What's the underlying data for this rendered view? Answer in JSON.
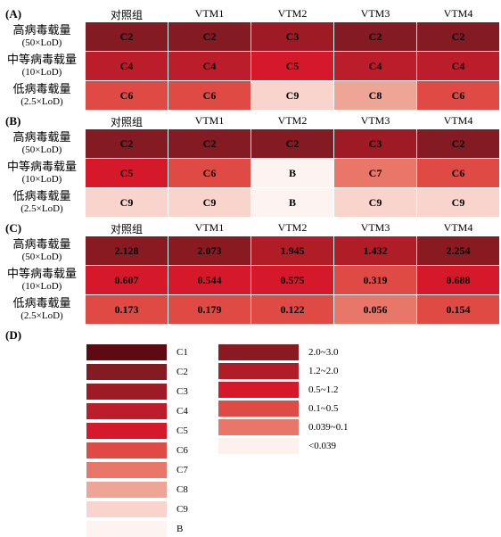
{
  "panels": [
    {
      "label": "(A)",
      "headers": [
        "对照组",
        "VTM1",
        "VTM2",
        "VTM3",
        "VTM4"
      ],
      "rows": [
        {
          "label": "高病毒载量",
          "sublabel": "(50×LoD)",
          "cells": [
            "C2",
            "C2",
            "C3",
            "C2",
            "C2"
          ]
        },
        {
          "label": "中等病毒载量",
          "sublabel": "(10×LoD)",
          "cells": [
            "C4",
            "C4",
            "C5",
            "C4",
            "C4"
          ]
        },
        {
          "label": "低病毒载量",
          "sublabel": "(2.5×LoD)",
          "cells": [
            "C6",
            "C6",
            "C9",
            "C8",
            "C6"
          ]
        }
      ]
    },
    {
      "label": "(B)",
      "headers": [
        "对照组",
        "VTM1",
        "VTM2",
        "VTM3",
        "VTM4"
      ],
      "rows": [
        {
          "label": "高病毒载量",
          "sublabel": "(50×LoD)",
          "cells": [
            "C2",
            "C2",
            "C2",
            "C3",
            "C2"
          ]
        },
        {
          "label": "中等病毒载量",
          "sublabel": "(10×LoD)",
          "cells": [
            "C5",
            "C6",
            "B",
            "C7",
            "C6"
          ]
        },
        {
          "label": "低病毒载量",
          "sublabel": "(2.5×LoD)",
          "cells": [
            "C9",
            "C9",
            "B",
            "C9",
            "C9"
          ]
        }
      ]
    },
    {
      "label": "(C)",
      "headers": [
        "对照组",
        "VTM1",
        "VTM2",
        "VTM3",
        "VTM4"
      ],
      "rows": [
        {
          "label": "高病毒载量",
          "sublabel": "(50×LoD)",
          "cells": [
            "2.128",
            "2.073",
            "1.945",
            "1.432",
            "2.254"
          ]
        },
        {
          "label": "中等病毒载量",
          "sublabel": "(10×LoD)",
          "cells": [
            "0.607",
            "0.544",
            "0.575",
            "0.319",
            "0.688"
          ]
        },
        {
          "label": "低病毒载量",
          "sublabel": "(2.5×LoD)",
          "cells": [
            "0.173",
            "0.179",
            "0.122",
            "0.056",
            "0.154"
          ]
        }
      ]
    }
  ],
  "legend": {
    "label": "(D)",
    "categories": [
      {
        "name": "C1",
        "color": "#5e0a12"
      },
      {
        "name": "C2",
        "color": "#841a22"
      },
      {
        "name": "C3",
        "color": "#9e1a24"
      },
      {
        "name": "C4",
        "color": "#bb1e2a"
      },
      {
        "name": "C5",
        "color": "#d6182b"
      },
      {
        "name": "C6",
        "color": "#df4a44"
      },
      {
        "name": "C7",
        "color": "#e8776a"
      },
      {
        "name": "C8",
        "color": "#efa596"
      },
      {
        "name": "C9",
        "color": "#f8d4cc"
      },
      {
        "name": "B",
        "color": "#fdf4f1"
      }
    ],
    "ranges": [
      {
        "name": "2.0~3.0",
        "color": "#8a1a22"
      },
      {
        "name": "1.2~2.0",
        "color": "#b01d27"
      },
      {
        "name": "0.5~1.2",
        "color": "#d6182b"
      },
      {
        "name": "0.1~0.5",
        "color": "#df4a44"
      },
      {
        "name": "0.039~0.1",
        "color": "#e8776a"
      },
      {
        "name": "<0.039",
        "color": "#fdf1ee"
      }
    ]
  },
  "chart_data": {
    "type": "heatmap",
    "columns": [
      "对照组",
      "VTM1",
      "VTM2",
      "VTM3",
      "VTM4"
    ],
    "rows": [
      "高病毒载量 (50×LoD)",
      "中等病毒载量 (10×LoD)",
      "低病毒载量 (2.5×LoD)"
    ],
    "panel_A": [
      [
        "C2",
        "C2",
        "C3",
        "C2",
        "C2"
      ],
      [
        "C4",
        "C4",
        "C5",
        "C4",
        "C4"
      ],
      [
        "C6",
        "C6",
        "C9",
        "C8",
        "C6"
      ]
    ],
    "panel_B": [
      [
        "C2",
        "C2",
        "C2",
        "C3",
        "C2"
      ],
      [
        "C5",
        "C6",
        "B",
        "C7",
        "C6"
      ],
      [
        "C9",
        "C9",
        "B",
        "C9",
        "C9"
      ]
    ],
    "panel_C": [
      [
        2.128,
        2.073,
        1.945,
        1.432,
        2.254
      ],
      [
        0.607,
        0.544,
        0.575,
        0.319,
        0.688
      ],
      [
        0.173,
        0.179,
        0.122,
        0.056,
        0.154
      ]
    ]
  }
}
